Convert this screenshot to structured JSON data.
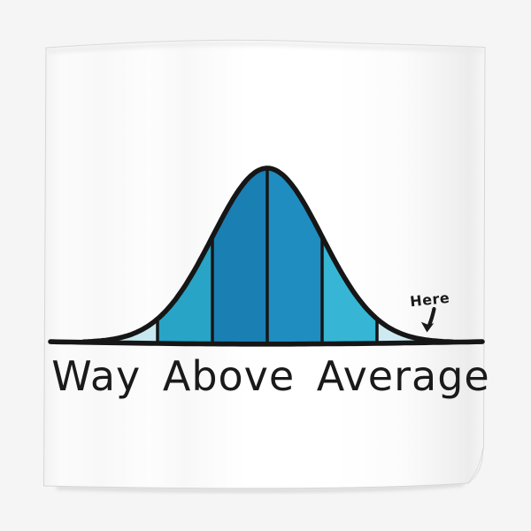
{
  "colors": {
    "scene_bg": "#f5f5f6",
    "poster_paper": "#ffffff",
    "edge_line": "#d6d6d6",
    "ink": "#1a1a1a"
  },
  "poster": {
    "kind": "art-print-mockup",
    "caption": "Way Above Average"
  },
  "chart_data": {
    "type": "area",
    "subtype": "normal-distribution-bell-curve",
    "title": "Way Above Average",
    "xlabel": "",
    "ylabel": "",
    "x_axis": {
      "baseline_drawn": true,
      "tick_labels": []
    },
    "grid": false,
    "legend": false,
    "ink_color": "#161616",
    "mean_sigma": 0,
    "divider_sigmas": [
      -2,
      -1,
      0,
      1,
      2
    ],
    "curve_extent_sigmas": [
      -3.35,
      3.4
    ],
    "bands": [
      {
        "sigma_range": [
          -3.35,
          -2
        ],
        "color": "#c6e8ee",
        "region": "-3sd to -2sd"
      },
      {
        "sigma_range": [
          -2,
          -1
        ],
        "color": "#28a4c6",
        "region": "-2sd to -1sd"
      },
      {
        "sigma_range": [
          -1,
          0
        ],
        "color": "#1a7fb3",
        "region": "-1sd to mean"
      },
      {
        "sigma_range": [
          0,
          1
        ],
        "color": "#1f8dc0",
        "region": "mean to +1sd"
      },
      {
        "sigma_range": [
          1,
          2
        ],
        "color": "#36b6d4",
        "region": "+1sd to +2sd"
      },
      {
        "sigma_range": [
          2,
          3.4
        ],
        "color": "#cdeaf1",
        "region": "+2sd to +3sd"
      }
    ],
    "annotations": [
      {
        "label": "Here",
        "target": "far right tail beyond +2.5 sigma",
        "arrow": "down-left"
      }
    ]
  }
}
